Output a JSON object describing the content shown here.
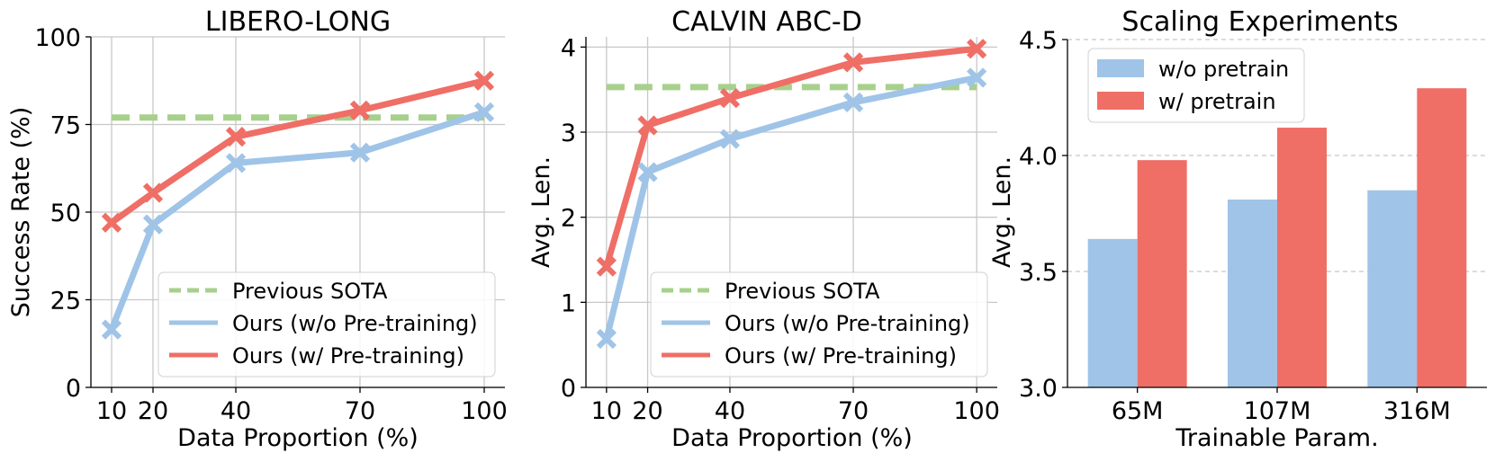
{
  "chart_data": [
    {
      "type": "line",
      "title": "LIBERO-LONG",
      "xlabel": "Data Proportion (%)",
      "ylabel": "Success Rate (%)",
      "x": [
        10,
        20,
        40,
        70,
        100
      ],
      "x_ticks": [
        "10",
        "20",
        "40",
        "70",
        "100"
      ],
      "xlim": [
        5,
        105
      ],
      "ylim": [
        0,
        100
      ],
      "y_ticks": [
        "0",
        "25",
        "50",
        "75",
        "100"
      ],
      "y_tick_values": [
        0,
        25,
        50,
        75,
        100
      ],
      "grid": true,
      "legend_position": "bottom-right",
      "baseline": {
        "name": "Previous SOTA",
        "value": 77,
        "color": "#a8d08d"
      },
      "series": [
        {
          "name": "Ours (w/o Pre-training)",
          "values": [
            16.5,
            46.5,
            64,
            67,
            78.5
          ],
          "color": "#9fc4e7"
        },
        {
          "name": "Ours (w/ Pre-training)",
          "values": [
            47,
            55.5,
            71.5,
            79,
            87.5
          ],
          "color": "#ef6e66"
        }
      ]
    },
    {
      "type": "line",
      "title": "CALVIN ABC-D",
      "xlabel": "Data Proportion (%)",
      "ylabel": "Avg. Len.",
      "x": [
        10,
        20,
        40,
        70,
        100
      ],
      "x_ticks": [
        "10",
        "20",
        "40",
        "70",
        "100"
      ],
      "xlim": [
        5,
        105
      ],
      "ylim": [
        0,
        4.12
      ],
      "y_ticks": [
        "0",
        "1",
        "2",
        "3",
        "4"
      ],
      "y_tick_values": [
        0,
        1,
        2,
        3,
        4
      ],
      "grid": true,
      "legend_position": "bottom-right",
      "baseline": {
        "name": "Previous SOTA",
        "value": 3.53,
        "color": "#a8d08d"
      },
      "series": [
        {
          "name": "Ours (w/o Pre-training)",
          "values": [
            0.57,
            2.53,
            2.92,
            3.35,
            3.64
          ],
          "color": "#9fc4e7"
        },
        {
          "name": "Ours (w/ Pre-training)",
          "values": [
            1.42,
            3.08,
            3.4,
            3.82,
            3.98
          ],
          "color": "#ef6e66"
        }
      ]
    },
    {
      "type": "bar",
      "title": "Scaling Experiments",
      "xlabel": "Trainable Param.",
      "ylabel": "Avg. Len.",
      "categories": [
        "65M",
        "107M",
        "316M"
      ],
      "ylim": [
        3.0,
        4.5
      ],
      "y_ticks": [
        "3.0",
        "3.5",
        "4.0",
        "4.5"
      ],
      "y_tick_values": [
        3.0,
        3.5,
        4.0,
        4.5
      ],
      "grid": true,
      "legend_position": "top-left",
      "series": [
        {
          "name": "w/o pretrain",
          "values": [
            3.64,
            3.81,
            3.85
          ],
          "color": "#9fc4e7"
        },
        {
          "name": "w/ pretrain",
          "values": [
            3.98,
            4.12,
            4.29
          ],
          "color": "#ef6e66"
        }
      ]
    }
  ]
}
